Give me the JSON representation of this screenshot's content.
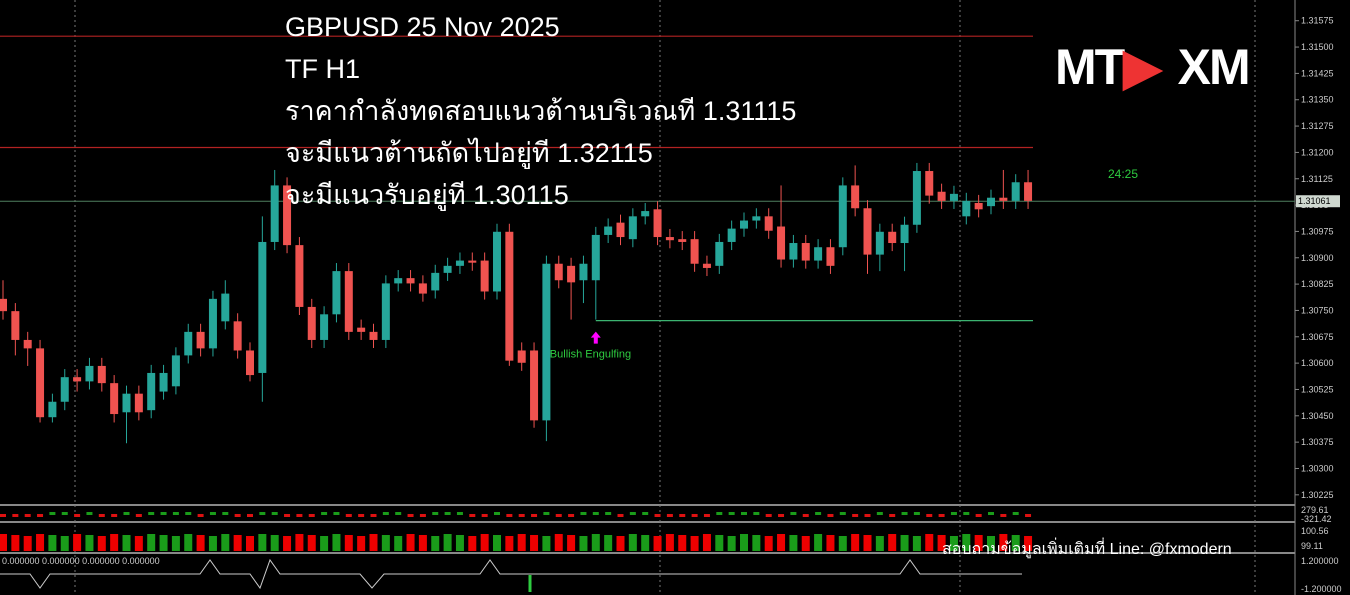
{
  "chart_data": {
    "type": "candlestick",
    "title_lines": [
      "GBPUSD 25 Nov 2025",
      "TF H1",
      "ราคากำลังทดสอบแนวต้านบริเวณที 1.31115",
      "จะมีแนวต้านถัดไปอยู่ที 1.32115",
      "จะมีแนวรับอยู่ที 1.30115"
    ],
    "open": [
      1.30783,
      1.30748,
      1.30666,
      1.30642,
      1.30446,
      1.3049,
      1.3056,
      1.30548,
      1.30592,
      1.30543,
      1.3046,
      1.30513,
      1.30466,
      1.30519,
      1.30534,
      1.30622,
      1.30689,
      1.30642,
      1.30719,
      1.30719,
      1.30636,
      1.30572,
      1.30945,
      1.31106,
      1.30936,
      1.3076,
      1.30666,
      1.30739,
      1.30862,
      1.30701,
      1.30689,
      1.30666,
      1.30827,
      1.30842,
      1.30827,
      1.30807,
      1.30857,
      1.30877,
      1.30892,
      1.30892,
      1.30804,
      1.30974,
      1.30636,
      1.30636,
      1.30437,
      1.30883,
      1.30877,
      1.30836,
      1.30836,
      1.30965,
      1.31,
      1.30953,
      1.31018,
      1.31038,
      1.30959,
      1.30953,
      1.30953,
      1.30883,
      1.30877,
      1.30945,
      1.30983,
      1.31006,
      1.31018,
      1.30989,
      1.30895,
      1.30942,
      1.30892,
      1.3093,
      1.3093,
      1.31106,
      1.31041,
      1.30909,
      1.30974,
      1.30942,
      1.30994,
      1.31147,
      1.31088,
      1.31062,
      1.31018,
      1.31056,
      1.31047,
      1.31071,
      1.31062,
      1.31115
    ],
    "high": [
      1.30836,
      1.30771,
      1.30689,
      1.30666,
      1.30513,
      1.30583,
      1.30583,
      1.30615,
      1.30615,
      1.30566,
      1.30536,
      1.30536,
      1.30595,
      1.30595,
      1.30645,
      1.30712,
      1.30712,
      1.30806,
      1.30836,
      1.30742,
      1.30659,
      1.31018,
      1.3115,
      1.31129,
      1.30959,
      1.30783,
      1.30762,
      1.30885,
      1.30885,
      1.30724,
      1.30712,
      1.3085,
      1.30865,
      1.30865,
      1.3085,
      1.3088,
      1.309,
      1.30915,
      1.30915,
      1.30915,
      1.30997,
      1.30997,
      1.30659,
      1.30659,
      1.30906,
      1.30906,
      1.309,
      1.30906,
      1.30988,
      1.31012,
      1.31023,
      1.31041,
      1.31056,
      1.31061,
      1.30982,
      1.30976,
      1.30976,
      1.30906,
      1.30968,
      1.31006,
      1.31029,
      1.31041,
      1.31041,
      1.31106,
      1.30965,
      1.30965,
      1.30953,
      1.30953,
      1.31129,
      1.31163,
      1.31064,
      1.30997,
      1.30997,
      1.31017,
      1.3117,
      1.3117,
      1.31111,
      1.31105,
      1.31085,
      1.31079,
      1.31094,
      1.3115,
      1.31138,
      1.3115
    ],
    "low": [
      1.30724,
      1.30622,
      1.30592,
      1.30431,
      1.30431,
      1.30466,
      1.30519,
      1.30525,
      1.30519,
      1.30431,
      1.30372,
      1.30437,
      1.30443,
      1.30496,
      1.30511,
      1.30599,
      1.30619,
      1.30619,
      1.30696,
      1.30613,
      1.30548,
      1.3049,
      1.30922,
      1.30913,
      1.30737,
      1.30643,
      1.30643,
      1.30716,
      1.30666,
      1.30666,
      1.30643,
      1.30643,
      1.30804,
      1.30804,
      1.30775,
      1.30784,
      1.30834,
      1.30854,
      1.30863,
      1.30781,
      1.30781,
      1.30592,
      1.30578,
      1.30416,
      1.30378,
      1.30813,
      1.30724,
      1.30771,
      1.30724,
      1.30942,
      1.30936,
      1.3093,
      1.30995,
      1.30936,
      1.30927,
      1.30922,
      1.3086,
      1.30848,
      1.30854,
      1.30922,
      1.3096,
      1.30983,
      1.30954,
      1.30872,
      1.30872,
      1.30869,
      1.30869,
      1.30854,
      1.30907,
      1.31018,
      1.30854,
      1.30862,
      1.30919,
      1.30862,
      1.30971,
      1.31054,
      1.31039,
      1.31039,
      1.30995,
      1.31015,
      1.31024,
      1.31039,
      1.31039,
      1.31039
    ],
    "close": [
      1.30748,
      1.30666,
      1.30642,
      1.30446,
      1.3049,
      1.3056,
      1.30548,
      1.30592,
      1.30543,
      1.30455,
      1.30513,
      1.3046,
      1.30572,
      1.30572,
      1.30622,
      1.30689,
      1.30642,
      1.30783,
      1.30798,
      1.30636,
      1.30566,
      1.30945,
      1.31106,
      1.30936,
      1.3076,
      1.30666,
      1.30739,
      1.30862,
      1.30689,
      1.30689,
      1.30666,
      1.30827,
      1.30842,
      1.30827,
      1.30798,
      1.30857,
      1.30877,
      1.30892,
      1.30886,
      1.30804,
      1.30974,
      1.30607,
      1.30601,
      1.30437,
      1.30883,
      1.30836,
      1.3083,
      1.30883,
      1.30965,
      1.30989,
      1.30959,
      1.31018,
      1.31033,
      1.30959,
      1.3095,
      1.30945,
      1.30883,
      1.30871,
      1.30945,
      1.30983,
      1.31006,
      1.31018,
      1.30977,
      1.30895,
      1.30942,
      1.30892,
      1.3093,
      1.30877,
      1.31106,
      1.31041,
      1.30909,
      1.30974,
      1.30942,
      1.30994,
      1.31147,
      1.31077,
      1.31062,
      1.31082,
      1.31062,
      1.31038,
      1.31071,
      1.31062,
      1.31115,
      1.31062
    ],
    "up_color": "#26a69a",
    "down_color": "#ef5350",
    "ylim": [
      1.30196,
      1.31634
    ],
    "yticks": [
      1.31575,
      {
        "value": 1.315,
        "label": "1.31500"
      },
      1.31425,
      {
        "value": 1.3135,
        "label": "1.31350"
      },
      1.31275,
      {
        "value": 1.312,
        "label": "1.31200"
      },
      1.31125,
      1.3105,
      1.30975,
      {
        "value": 1.309,
        "label": "1.30900"
      },
      1.30825,
      {
        "value": 1.3075,
        "label": "1.30750"
      },
      1.30675,
      {
        "value": 1.306,
        "label": "1.30600"
      },
      1.30525,
      {
        "value": 1.3045,
        "label": "1.30450"
      },
      1.30375,
      {
        "value": 1.303,
        "label": "1.30300"
      },
      1.30225
    ],
    "levels": [
      {
        "value": 1.31531,
        "color": "#b22222"
      },
      {
        "value": 1.31214,
        "color": "#b22222"
      },
      {
        "value": 1.30721,
        "color": "#3cb371"
      }
    ],
    "last_price": 1.31061,
    "countdown": "24:25",
    "pattern": {
      "index": 48,
      "label": "Bullish Engulfing"
    },
    "logo": [
      "MT",
      "XM"
    ],
    "footer": "สอบถามข้อมูลเพิ่มเติมที่ Line: @fxmodern",
    "indicator_labels": [
      "279.61",
      "-321.42",
      "100.56",
      "99.11",
      "0.000000 0.000000 0.000000 0.000000",
      "1.200000",
      "-1.200000"
    ]
  }
}
